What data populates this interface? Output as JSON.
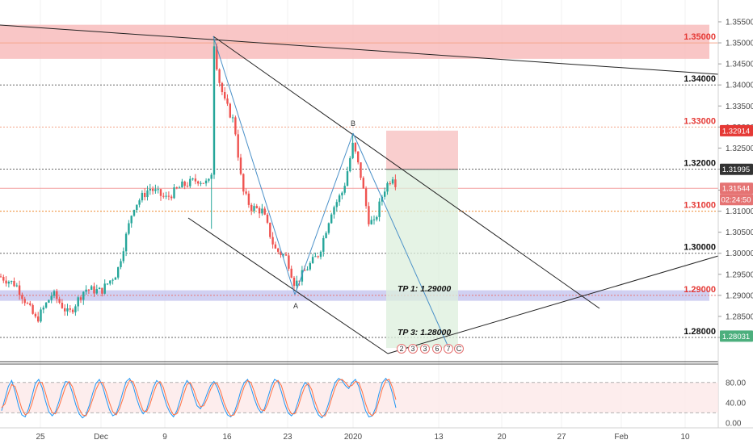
{
  "chart_data": [
    {
      "type": "candlestick",
      "x_ticks": [
        "25",
        "Dec",
        "9",
        "16",
        "23",
        "2020",
        "13",
        "20",
        "27",
        "Feb",
        "10"
      ],
      "ylim": [
        1.2775,
        1.3565
      ],
      "y_ticks": [
        "1.35500",
        "1.35000",
        "1.34500",
        "1.34000",
        "1.33500",
        "1.33000",
        "1.32500",
        "1.32000",
        "1.31500",
        "1.31000",
        "1.30500",
        "1.30000",
        "1.29500",
        "1.29000",
        "1.28500",
        "1.28000"
      ],
      "levels": [
        {
          "label": "1.35000",
          "value": 1.35,
          "color": "#e53935",
          "line": "#f4a58a",
          "style": "solid"
        },
        {
          "label": "1.34000",
          "value": 1.34,
          "color": "#111111",
          "line": "#666666",
          "style": "dotted"
        },
        {
          "label": "1.33000",
          "value": 1.33,
          "color": "#e53935",
          "line": "#f4a58a",
          "style": "dotted"
        },
        {
          "label": "1.32000",
          "value": 1.32,
          "color": "#111111",
          "line": "#666666",
          "style": "dotted"
        },
        {
          "label": "1.31000",
          "value": 1.31,
          "color": "#e53935",
          "line": "#ef8a2e",
          "style": "dotted"
        },
        {
          "label": "1.30000",
          "value": 1.3,
          "color": "#111111",
          "line": "#666666",
          "style": "dotted"
        },
        {
          "label": "1.29000",
          "value": 1.29,
          "color": "#e53935",
          "line": "#e57373",
          "style": "dotted"
        },
        {
          "label": "1.28000",
          "value": 1.28,
          "color": "#111111",
          "line": "#666666",
          "style": "dotted"
        }
      ],
      "zones": [
        {
          "from": 1.3462,
          "to": 1.3543,
          "color": "#f8bcbc"
        },
        {
          "from": 1.2887,
          "to": 1.2912,
          "color": "#c8c8f0"
        }
      ],
      "price_badges": [
        {
          "label": "1.32914",
          "value": 1.32914,
          "bg": "#e53935"
        },
        {
          "label": "1.31995",
          "value": 1.31995,
          "bg": "#333333"
        },
        {
          "label": "1.31544",
          "value": 1.31544,
          "bg": "#e57373"
        },
        {
          "label": "02:24:50",
          "value": 1.313,
          "bg": "#e57373"
        },
        {
          "label": "1.28031",
          "value": 1.28031,
          "bg": "#4caf7d"
        }
      ],
      "annotations": [
        "TP 1: 1.29000",
        "TP 3: 1.28000"
      ],
      "pattern_points": [
        "A",
        "B"
      ],
      "wave_labels": [
        "2",
        "3",
        "3",
        "6",
        "7",
        "C"
      ]
    },
    {
      "type": "line",
      "name": "stochastic",
      "ylim": [
        -5,
        110
      ],
      "y_ticks": [
        "80.00",
        "40.00",
        "0.00"
      ],
      "bands": [
        20,
        80
      ],
      "series": [
        {
          "color": "#2196f3",
          "values": [
            24,
            48,
            72,
            84,
            62,
            34,
            16,
            12,
            28,
            52,
            78,
            86,
            70,
            44,
            22,
            14,
            22,
            42,
            66,
            82,
            80,
            60,
            36,
            18,
            10,
            16,
            34,
            58,
            78,
            86,
            72,
            48,
            26,
            14,
            18,
            38,
            62,
            82,
            88,
            74,
            50,
            30,
            18,
            26,
            48,
            70,
            84,
            78,
            56,
            34,
            20,
            12,
            24,
            46,
            70,
            84,
            76,
            54,
            34,
            28,
            40,
            58,
            74,
            82,
            70,
            50,
            30,
            16,
            12,
            20,
            40,
            64,
            80,
            86,
            70,
            48,
            30,
            20,
            28,
            50,
            72,
            86,
            82,
            62,
            38,
            20,
            14,
            22,
            42,
            66,
            80,
            74,
            52,
            30,
            16,
            10,
            18,
            38,
            62,
            80,
            88,
            84,
            74,
            68,
            80,
            86,
            72,
            48,
            24,
            12,
            14,
            30,
            58,
            80,
            88,
            80,
            58,
            30
          ]
        },
        {
          "color": "#ff7043",
          "values": [
            30,
            38,
            58,
            76,
            72,
            50,
            28,
            16,
            20,
            38,
            62,
            80,
            80,
            60,
            36,
            20,
            18,
            32,
            52,
            72,
            82,
            72,
            50,
            28,
            16,
            14,
            26,
            46,
            66,
            80,
            80,
            62,
            40,
            22,
            16,
            28,
            48,
            70,
            84,
            82,
            64,
            42,
            24,
            22,
            36,
            58,
            76,
            82,
            70,
            46,
            28,
            16,
            18,
            34,
            56,
            76,
            80,
            66,
            46,
            32,
            34,
            48,
            66,
            78,
            78,
            62,
            40,
            24,
            14,
            16,
            30,
            52,
            72,
            84,
            80,
            62,
            40,
            26,
            24,
            38,
            60,
            78,
            84,
            74,
            52,
            30,
            18,
            18,
            32,
            54,
            72,
            78,
            66,
            42,
            24,
            14,
            14,
            28,
            50,
            70,
            84,
            86,
            80,
            72,
            74,
            82,
            80,
            62,
            38,
            20,
            14,
            22,
            44,
            68,
            84,
            86,
            70,
            46
          ]
        }
      ]
    }
  ]
}
